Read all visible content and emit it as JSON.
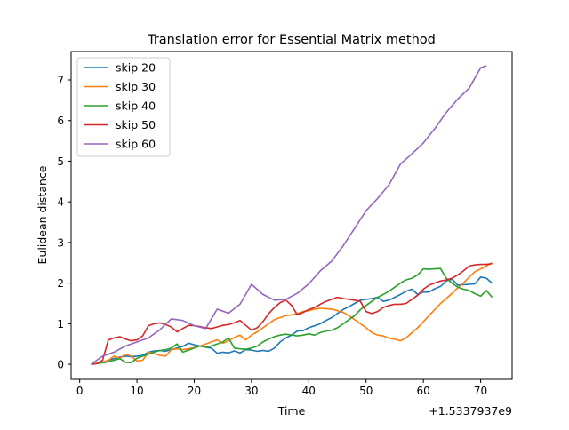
{
  "chart_data": {
    "type": "line",
    "title": "Translation error for Essential Matrix method",
    "xlabel": "Time",
    "ylabel": "Eulidean distance",
    "x_offset_label": "+1.5337937e9",
    "xlim": [
      -1.5,
      75.5
    ],
    "ylim": [
      -0.37,
      7.7
    ],
    "xticks": [
      0,
      10,
      20,
      30,
      40,
      50,
      60,
      70
    ],
    "yticks": [
      0,
      1,
      2,
      3,
      4,
      5,
      6,
      7
    ],
    "grid": false,
    "legend": "top-left",
    "series": [
      {
        "name": "skip 20",
        "color": "#1f77b4",
        "x": [
          2,
          3,
          4,
          5,
          6,
          7,
          8,
          9,
          10,
          11,
          12,
          13,
          14,
          15,
          16,
          17,
          18,
          19,
          20,
          21,
          22,
          23,
          24,
          25,
          26,
          27,
          28,
          29,
          30,
          31,
          32,
          33,
          34,
          35,
          36,
          37,
          38,
          39,
          40,
          41,
          42,
          43,
          44,
          45,
          46,
          47,
          48,
          49,
          50,
          51,
          52,
          53,
          54,
          55,
          56,
          57,
          58,
          59,
          60,
          61,
          62,
          63,
          64,
          65,
          66,
          67,
          68,
          69,
          70,
          71,
          72
        ],
        "y": [
          0.0,
          0.02,
          0.05,
          0.1,
          0.14,
          0.18,
          0.2,
          0.19,
          0.2,
          0.22,
          0.3,
          0.33,
          0.34,
          0.32,
          0.36,
          0.4,
          0.44,
          0.52,
          0.48,
          0.45,
          0.42,
          0.4,
          0.27,
          0.3,
          0.28,
          0.33,
          0.28,
          0.36,
          0.35,
          0.32,
          0.34,
          0.32,
          0.4,
          0.55,
          0.65,
          0.72,
          0.82,
          0.83,
          0.9,
          0.95,
          1.0,
          1.08,
          1.15,
          1.25,
          1.35,
          1.42,
          1.5,
          1.58,
          1.6,
          1.62,
          1.65,
          1.55,
          1.58,
          1.65,
          1.72,
          1.8,
          1.85,
          1.72,
          1.78,
          1.78,
          1.86,
          1.92,
          2.05,
          2.1,
          1.95,
          1.96,
          1.97,
          1.98,
          2.15,
          2.12,
          2.0
        ]
      },
      {
        "name": "skip 30",
        "color": "#ff7f0e",
        "x": [
          2,
          3,
          4,
          5,
          6,
          7,
          8,
          9,
          10,
          11,
          12,
          13,
          14,
          15,
          16,
          17,
          18,
          19,
          20,
          21,
          22,
          23,
          24,
          25,
          26,
          27,
          28,
          29,
          30,
          31,
          32,
          33,
          34,
          35,
          36,
          37,
          38,
          39,
          40,
          41,
          42,
          43,
          44,
          45,
          46,
          47,
          48,
          49,
          50,
          51,
          52,
          53,
          54,
          55,
          56,
          57,
          58,
          59,
          60,
          61,
          62,
          63,
          64,
          65,
          66,
          67,
          68,
          69,
          70,
          71,
          72
        ],
        "y": [
          0.0,
          0.02,
          0.05,
          0.1,
          0.2,
          0.15,
          0.25,
          0.2,
          0.08,
          0.1,
          0.3,
          0.26,
          0.22,
          0.2,
          0.36,
          0.38,
          0.36,
          0.38,
          0.41,
          0.45,
          0.5,
          0.55,
          0.6,
          0.52,
          0.58,
          0.66,
          0.72,
          0.6,
          0.72,
          0.8,
          0.9,
          1.0,
          1.1,
          1.15,
          1.2,
          1.22,
          1.25,
          1.3,
          1.32,
          1.36,
          1.38,
          1.37,
          1.36,
          1.32,
          1.28,
          1.2,
          1.1,
          1.0,
          0.9,
          0.78,
          0.72,
          0.7,
          0.64,
          0.62,
          0.58,
          0.65,
          0.78,
          0.9,
          1.05,
          1.2,
          1.35,
          1.5,
          1.62,
          1.75,
          1.88,
          2.0,
          2.15,
          2.28,
          2.35,
          2.42,
          2.5
        ]
      },
      {
        "name": "skip 40",
        "color": "#2ca02c",
        "x": [
          2,
          3,
          4,
          5,
          6,
          7,
          8,
          9,
          10,
          11,
          12,
          13,
          14,
          15,
          16,
          17,
          18,
          19,
          20,
          21,
          22,
          23,
          24,
          25,
          26,
          27,
          28,
          29,
          30,
          31,
          32,
          33,
          34,
          35,
          36,
          37,
          38,
          39,
          40,
          41,
          42,
          43,
          44,
          45,
          46,
          47,
          48,
          49,
          50,
          51,
          52,
          53,
          54,
          55,
          56,
          57,
          58,
          59,
          60,
          61,
          62,
          63,
          64,
          65,
          66,
          67,
          68,
          69,
          70,
          71,
          72
        ],
        "y": [
          0.0,
          0.02,
          0.04,
          0.06,
          0.1,
          0.14,
          0.05,
          0.04,
          0.15,
          0.2,
          0.25,
          0.3,
          0.34,
          0.36,
          0.4,
          0.5,
          0.3,
          0.35,
          0.4,
          0.45,
          0.42,
          0.45,
          0.5,
          0.55,
          0.65,
          0.4,
          0.38,
          0.37,
          0.4,
          0.45,
          0.55,
          0.62,
          0.68,
          0.72,
          0.74,
          0.72,
          0.7,
          0.72,
          0.75,
          0.72,
          0.78,
          0.82,
          0.84,
          0.9,
          1.0,
          1.1,
          1.2,
          1.35,
          1.45,
          1.55,
          1.65,
          1.72,
          1.8,
          1.9,
          2.0,
          2.08,
          2.12,
          2.2,
          2.35,
          2.34,
          2.35,
          2.36,
          2.12,
          2.0,
          1.9,
          1.85,
          1.82,
          1.74,
          1.68,
          1.82,
          1.65
        ]
      },
      {
        "name": "skip 50",
        "color": "#d62728",
        "x": [
          2,
          3,
          4,
          5,
          6,
          7,
          8,
          9,
          10,
          11,
          12,
          13,
          14,
          15,
          16,
          17,
          18,
          19,
          20,
          21,
          22,
          23,
          24,
          25,
          26,
          27,
          28,
          29,
          30,
          31,
          32,
          33,
          34,
          35,
          36,
          37,
          38,
          39,
          40,
          41,
          42,
          43,
          44,
          45,
          46,
          47,
          48,
          49,
          50,
          51,
          52,
          53,
          54,
          55,
          56,
          57,
          58,
          59,
          60,
          61,
          62,
          63,
          64,
          65,
          66,
          67,
          68,
          69,
          70,
          71,
          72
        ],
        "y": [
          0.0,
          0.02,
          0.1,
          0.6,
          0.65,
          0.68,
          0.62,
          0.58,
          0.6,
          0.7,
          0.95,
          1.0,
          1.02,
          0.98,
          0.92,
          0.8,
          0.88,
          0.96,
          0.95,
          0.93,
          0.9,
          0.88,
          0.92,
          0.96,
          0.98,
          1.02,
          1.08,
          0.96,
          0.84,
          0.9,
          1.05,
          1.25,
          1.4,
          1.52,
          1.58,
          1.45,
          1.22,
          1.28,
          1.35,
          1.4,
          1.48,
          1.55,
          1.6,
          1.65,
          1.62,
          1.6,
          1.58,
          1.55,
          1.3,
          1.25,
          1.3,
          1.4,
          1.45,
          1.48,
          1.48,
          1.5,
          1.6,
          1.7,
          1.85,
          1.95,
          2.0,
          2.05,
          2.08,
          2.12,
          2.2,
          2.3,
          2.42,
          2.45,
          2.46,
          2.46,
          2.48
        ]
      },
      {
        "name": "skip 60",
        "color": "#9467bd",
        "x": [
          2,
          4,
          6,
          8,
          10,
          12,
          14,
          16,
          18,
          20,
          22,
          24,
          26,
          28,
          30,
          32,
          34,
          36,
          38,
          40,
          42,
          44,
          46,
          48,
          50,
          52,
          54,
          56,
          58,
          60,
          62,
          64,
          66,
          68,
          70,
          71
        ],
        "y": [
          0.0,
          0.2,
          0.3,
          0.45,
          0.55,
          0.65,
          0.85,
          1.12,
          1.08,
          0.95,
          0.88,
          1.36,
          1.26,
          1.48,
          1.97,
          1.72,
          1.58,
          1.6,
          1.75,
          1.98,
          2.3,
          2.54,
          2.92,
          3.35,
          3.78,
          4.08,
          4.42,
          4.93,
          5.18,
          5.45,
          5.8,
          6.2,
          6.53,
          6.8,
          7.3,
          7.35
        ]
      }
    ]
  }
}
